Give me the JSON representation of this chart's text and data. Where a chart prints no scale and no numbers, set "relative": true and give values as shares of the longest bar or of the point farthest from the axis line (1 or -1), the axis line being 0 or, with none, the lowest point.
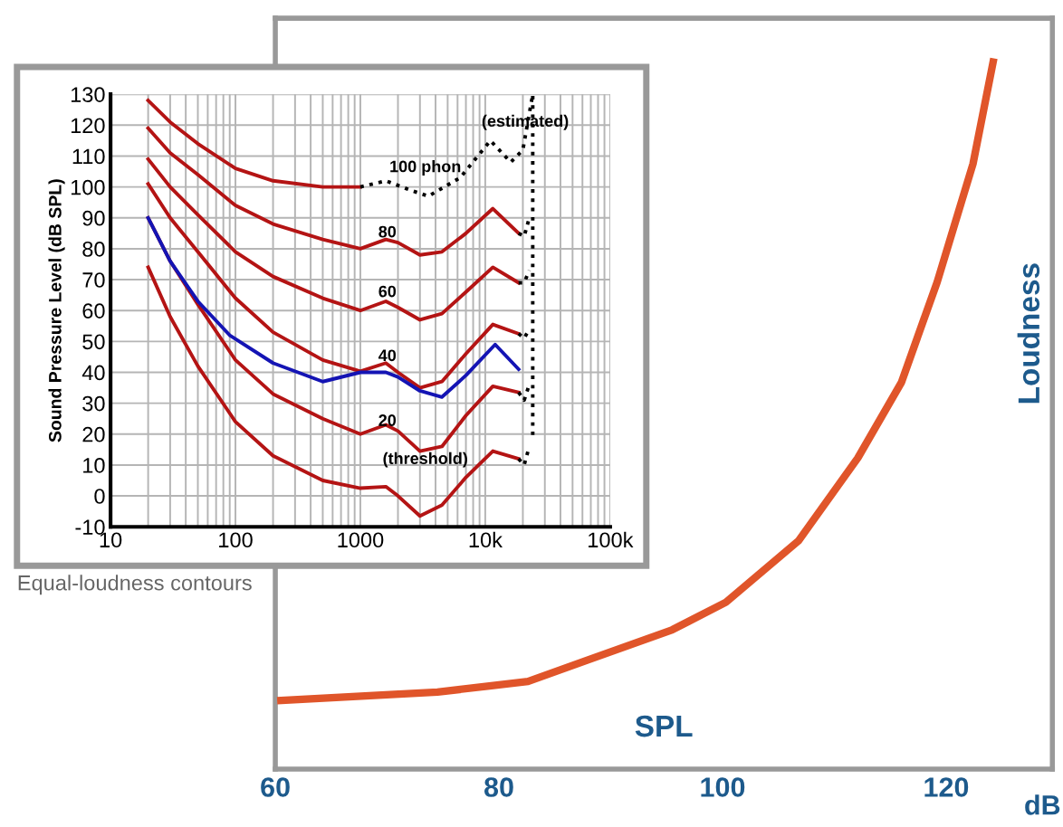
{
  "chart_data": [
    {
      "type": "line",
      "relative": true,
      "xlabel": "SPL",
      "ylabel": "Loudness",
      "xlim": [
        60,
        129.5
      ],
      "xticks": [
        60,
        80,
        100,
        120
      ],
      "grid": false,
      "legend": false,
      "marker": "none",
      "line_style": "solid",
      "annotations": [
        "dB"
      ],
      "series": [
        {
          "color": "#e0552a",
          "x": [
            60.5,
            74.5,
            82.6,
            87.9,
            95.5,
            100.3,
            106.8,
            112.1,
            116.0,
            119.2,
            122.4,
            124.2
          ],
          "values": [
            0.097,
            0.109,
            0.124,
            0.154,
            0.197,
            0.236,
            0.323,
            0.44,
            0.547,
            0.689,
            0.856,
            1.0
          ]
        }
      ]
    },
    {
      "type": "line",
      "ylabel": "Sound Pressure Level (dB SPL)",
      "log": "x",
      "xlim": [
        10,
        100000
      ],
      "xticks": [
        10,
        {
          "value": 20,
          "label": null
        },
        {
          "value": 30,
          "label": null
        },
        {
          "value": 40,
          "label": null
        },
        {
          "value": 50,
          "label": null
        },
        {
          "value": 60,
          "label": null
        },
        {
          "value": 70,
          "label": null
        },
        {
          "value": 80,
          "label": null
        },
        {
          "value": 90,
          "label": null
        },
        100,
        {
          "value": 200,
          "label": null
        },
        {
          "value": 300,
          "label": null
        },
        {
          "value": 400,
          "label": null
        },
        {
          "value": 500,
          "label": null
        },
        {
          "value": 600,
          "label": null
        },
        {
          "value": 700,
          "label": null
        },
        {
          "value": 800,
          "label": null
        },
        {
          "value": 900,
          "label": null
        },
        1000,
        {
          "value": 2000,
          "label": null
        },
        {
          "value": 3000,
          "label": null
        },
        {
          "value": 4000,
          "label": null
        },
        {
          "value": 5000,
          "label": null
        },
        {
          "value": 6000,
          "label": null
        },
        {
          "value": 7000,
          "label": null
        },
        {
          "value": 8000,
          "label": null
        },
        {
          "value": 9000,
          "label": null
        },
        {
          "value": 10000,
          "label": "10k"
        },
        {
          "value": 20000,
          "label": null
        },
        {
          "value": 30000,
          "label": null
        },
        {
          "value": 40000,
          "label": null
        },
        {
          "value": 50000,
          "label": null
        },
        {
          "value": 60000,
          "label": null
        },
        {
          "value": 70000,
          "label": null
        },
        {
          "value": 80000,
          "label": null
        },
        {
          "value": 90000,
          "label": null
        },
        {
          "value": 100000,
          "label": "100k"
        }
      ],
      "ylim": [
        -10,
        130
      ],
      "yticks": [
        -10,
        0,
        10,
        20,
        30,
        40,
        50,
        60,
        70,
        80,
        90,
        100,
        110,
        120,
        130
      ],
      "grid": true,
      "legend": false,
      "marker": "none",
      "annotations": [
        "(estimated)",
        "100 phon",
        "80",
        "60",
        "40",
        "20",
        "(threshold)",
        "Equal-loudness contours"
      ],
      "series": [
        {
          "color": "#b41414",
          "line_style": "solid",
          "x": [
            20,
            30,
            50,
            100,
            200,
            500,
            1000,
            1600,
            2000,
            3000,
            4500,
            7000,
            11500,
            18500
          ],
          "values": [
            74,
            58,
            42,
            24,
            13,
            5,
            2.5,
            3,
            0,
            -6.5,
            -3,
            6,
            14.5,
            12
          ]
        },
        {
          "color": "#b41414",
          "line_style": "solid",
          "x": [
            20,
            30,
            50,
            100,
            200,
            500,
            1000,
            1600,
            2000,
            3000,
            4500,
            7000,
            11500,
            18500
          ],
          "values": [
            90,
            76,
            62,
            44,
            33,
            25,
            20,
            23,
            21,
            14.5,
            16,
            26,
            35.5,
            33.5
          ]
        },
        {
          "color": "#b41414",
          "line_style": "solid",
          "x": [
            20,
            30,
            50,
            100,
            200,
            500,
            1000,
            1600,
            2000,
            3000,
            4500,
            7000,
            11500,
            18500
          ],
          "values": [
            101,
            90,
            79,
            64,
            53,
            44,
            40.3,
            43,
            40,
            35,
            37,
            46,
            55.5,
            52.5
          ]
        },
        {
          "color": "#b41414",
          "line_style": "solid",
          "x": [
            20,
            30,
            50,
            100,
            200,
            500,
            1000,
            1600,
            2000,
            3000,
            4500,
            7000,
            11500,
            18500
          ],
          "values": [
            109,
            100,
            91,
            79,
            71,
            64,
            60,
            63,
            61,
            57,
            59,
            66,
            74,
            69
          ]
        },
        {
          "color": "#b41414",
          "line_style": "solid",
          "x": [
            20,
            30,
            50,
            100,
            200,
            500,
            1000,
            1600,
            2000,
            3000,
            4500,
            7000,
            11500,
            18500
          ],
          "values": [
            119,
            111,
            104,
            94,
            88,
            83,
            80,
            83,
            82,
            78,
            79,
            85,
            93,
            85
          ]
        },
        {
          "color": "#b41414",
          "line_style": "solid",
          "x": [
            20,
            30,
            50,
            100,
            200,
            500,
            1000
          ],
          "values": [
            128,
            121,
            114,
            106,
            102,
            100,
            100
          ]
        },
        {
          "color": "#1414b4",
          "line_style": "solid",
          "x": [
            20,
            30,
            50,
            90,
            200,
            500,
            1000,
            1600,
            2000,
            3000,
            4500,
            7000,
            12000,
            18500
          ],
          "values": [
            90,
            76,
            63,
            52,
            43,
            37,
            40,
            40,
            38.5,
            34,
            32,
            39,
            49,
            41
          ]
        },
        {
          "color": "#000000",
          "line_style": "dotted",
          "x": [
            1000,
            1600,
            2500,
            3500,
            6300,
            11000,
            16000,
            20000,
            24000,
            24000
          ],
          "values": [
            100,
            102,
            99,
            97,
            103,
            115,
            108,
            112,
            130,
            18
          ]
        },
        {
          "color": "#000000",
          "line_style": "dotted",
          "x": [
            18500,
            20500,
            22500
          ],
          "values": [
            12,
            10,
            16
          ]
        },
        {
          "color": "#000000",
          "line_style": "dotted",
          "x": [
            18500,
            20500,
            22500
          ],
          "values": [
            33.5,
            31,
            36
          ]
        },
        {
          "color": "#000000",
          "line_style": "dotted",
          "x": [
            18500,
            20500,
            22500
          ],
          "values": [
            52.5,
            51,
            54
          ]
        },
        {
          "color": "#000000",
          "line_style": "dotted",
          "x": [
            18500,
            20500,
            22500
          ],
          "values": [
            69,
            69,
            73
          ]
        },
        {
          "color": "#000000",
          "line_style": "dotted",
          "x": [
            18500,
            20500,
            22500
          ],
          "values": [
            85,
            84,
            90
          ]
        }
      ]
    }
  ]
}
